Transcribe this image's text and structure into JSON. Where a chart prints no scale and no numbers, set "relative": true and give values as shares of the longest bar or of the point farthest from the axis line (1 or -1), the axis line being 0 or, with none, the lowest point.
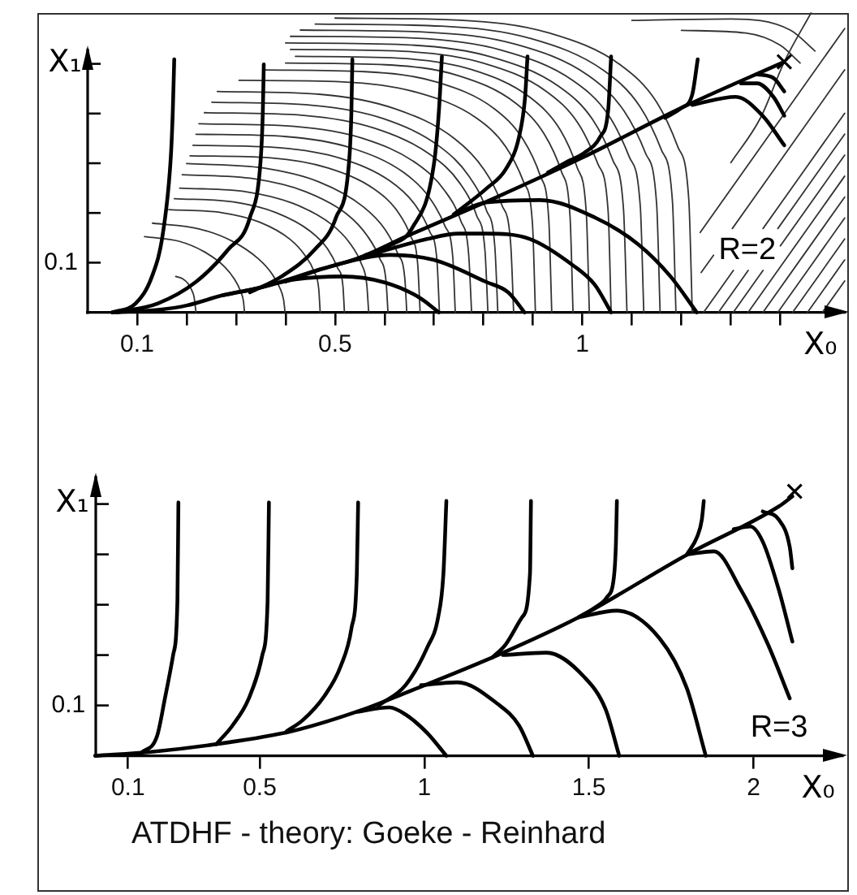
{
  "chart_data": [
    {
      "type": "line",
      "relative": true,
      "xlabel": "X₀",
      "ylabel": "X₁",
      "annotations": [
        "R=2",
        "0.1"
      ],
      "marker": "none",
      "xlim": [
        0,
        1.53
      ],
      "xticks": [
        0.1,
        {
          "value": 0.2,
          "label": null
        },
        {
          "value": 0.3,
          "label": null
        },
        {
          "value": 0.4,
          "label": null
        },
        0.5,
        {
          "value": 0.6,
          "label": null
        },
        {
          "value": 0.7,
          "label": null
        },
        {
          "value": 0.8,
          "label": null
        },
        {
          "value": 0.9,
          "label": null
        },
        1,
        {
          "value": 1.1,
          "label": null
        },
        {
          "value": 1.2,
          "label": null
        },
        {
          "value": 1.3,
          "label": null
        },
        {
          "value": 1.4,
          "label": null
        }
      ],
      "series": [
        {
          "color": "#333333",
          "x": [
            0.178,
            0.192,
            0.203,
            0.211,
            0.215,
            0.219
          ],
          "values": [
            0.12,
            0.112,
            0.096,
            0.072,
            0.052,
            0
          ]
        },
        {
          "color": "#333333",
          "x": [
            0.115,
            0.186,
            0.236,
            0.277,
            0.297,
            0.309,
            0.315,
            0.317
          ],
          "values": [
            0.253,
            0.237,
            0.202,
            0.152,
            0.11,
            0.071,
            0.036,
            0
          ]
        },
        {
          "color": "#333333",
          "x": [
            0.131,
            0.225,
            0.292,
            0.345,
            0.372,
            0.388,
            0.396,
            0.399
          ],
          "values": [
            0.298,
            0.279,
            0.238,
            0.179,
            0.13,
            0.083,
            0.042,
            0
          ]
        },
        {
          "color": "#333333",
          "x": [
            0.164,
            0.271,
            0.348,
            0.409,
            0.439,
            0.458,
            0.467,
            0.47
          ],
          "values": [
            0.343,
            0.333,
            0.301,
            0.244,
            0.191,
            0.135,
            0.079,
            0
          ]
        },
        {
          "color": "#333333",
          "x": [
            0.175,
            0.295,
            0.381,
            0.45,
            0.485,
            0.505,
            0.516,
            0.519
          ],
          "values": [
            0.38,
            0.369,
            0.333,
            0.271,
            0.212,
            0.149,
            0.087,
            0
          ]
        },
        {
          "color": "#333333",
          "x": [
            0.186,
            0.32,
            0.415,
            0.492,
            0.53,
            0.553,
            0.564,
            0.568
          ],
          "values": [
            0.415,
            0.403,
            0.364,
            0.295,
            0.231,
            0.163,
            0.095,
            0
          ]
        },
        {
          "color": "#333333",
          "x": [
            0.191,
            0.337,
            0.441,
            0.524,
            0.565,
            0.59,
            0.603,
            0.607
          ],
          "values": [
            0.46,
            0.446,
            0.403,
            0.328,
            0.256,
            0.181,
            0.105,
            0
          ]
        },
        {
          "color": "#333333",
          "x": [
            0.2,
            0.356,
            0.467,
            0.556,
            0.601,
            0.627,
            0.641,
            0.645
          ],
          "values": [
            0.497,
            0.482,
            0.436,
            0.354,
            0.277,
            0.195,
            0.114,
            0
          ]
        },
        {
          "color": "#333333",
          "x": [
            0.207,
            0.37,
            0.486,
            0.579,
            0.626,
            0.653,
            0.667,
            0.672
          ],
          "values": [
            0.523,
            0.516,
            0.482,
            0.412,
            0.338,
            0.254,
            0.162,
            0
          ]
        },
        {
          "color": "#333333",
          "x": [
            0.213,
            0.387,
            0.512,
            0.611,
            0.661,
            0.691,
            0.706,
            0.711
          ],
          "values": [
            0.558,
            0.55,
            0.514,
            0.439,
            0.361,
            0.271,
            0.173,
            0
          ]
        },
        {
          "color": "#333333",
          "x": [
            0.219,
            0.402,
            0.533,
            0.638,
            0.69,
            0.722,
            0.738,
            0.743
          ],
          "values": [
            0.595,
            0.587,
            0.549,
            0.468,
            0.385,
            0.289,
            0.184,
            0
          ]
        },
        {
          "color": "#333333",
          "x": [
            0.225,
            0.418,
            0.556,
            0.666,
            0.721,
            0.754,
            0.77,
            0.776
          ],
          "values": [
            0.63,
            0.621,
            0.581,
            0.496,
            0.408,
            0.306,
            0.195,
            0
          ]
        },
        {
          "color": "#333333",
          "x": [
            0.236,
            0.437,
            0.58,
            0.694,
            0.752,
            0.786,
            0.803,
            0.809
          ],
          "values": [
            0.667,
            0.658,
            0.615,
            0.525,
            0.432,
            0.324,
            0.207,
            0
          ]
        },
        {
          "color": "#333333",
          "x": [
            0.251,
            0.453,
            0.598,
            0.713,
            0.771,
            0.806,
            0.823,
            0.829
          ],
          "values": [
            0.702,
            0.692,
            0.647,
            0.552,
            0.454,
            0.341,
            0.218,
            0
          ]
        },
        {
          "color": "#333333",
          "x": [
            0.262,
            0.472,
            0.621,
            0.741,
            0.801,
            0.837,
            0.855,
            0.861
          ],
          "values": [
            0.738,
            0.728,
            0.68,
            0.581,
            0.477,
            0.359,
            0.229,
            0
          ]
        },
        {
          "color": "#333333",
          "x": [
            0.306,
            0.516,
            0.665,
            0.785,
            0.845,
            0.881,
            0.899,
            0.905
          ],
          "values": [
            0.775,
            0.77,
            0.735,
            0.65,
            0.553,
            0.436,
            0.297,
            0
          ]
        },
        {
          "color": "#333333",
          "x": [
            0.357,
            0.56,
            0.706,
            0.822,
            0.88,
            0.915,
            0.932,
            0.938
          ],
          "values": [
            0.81,
            0.804,
            0.769,
            0.68,
            0.578,
            0.455,
            0.31,
            0
          ]
        },
        {
          "color": "#333333",
          "x": [
            0.4,
            0.603,
            0.749,
            0.865,
            0.923,
            0.958,
            0.975,
            0.981
          ],
          "values": [
            0.833,
            0.827,
            0.791,
            0.699,
            0.595,
            0.468,
            0.319,
            0
          ]
        },
        {
          "color": "#333333",
          "x": [
            0.42,
            0.628,
            0.776,
            0.895,
            0.955,
            0.99,
            1.008,
            1.014
          ],
          "values": [
            0.855,
            0.849,
            0.811,
            0.717,
            0.61,
            0.481,
            0.327,
            0
          ]
        },
        {
          "color": "#333333",
          "x": [
            0.41,
            0.637,
            0.799,
            0.928,
            0.993,
            1.032,
            1.052,
            1.058
          ],
          "values": [
            0.878,
            0.872,
            0.833,
            0.737,
            0.627,
            0.493,
            0.336,
            0
          ]
        },
        {
          "color": "#333333",
          "x": [
            0.4,
            0.642,
            0.814,
            0.952,
            1.021,
            1.062,
            1.083,
            1.09
          ],
          "values": [
            0.9,
            0.894,
            0.854,
            0.755,
            0.643,
            0.506,
            0.345,
            0
          ]
        },
        {
          "color": "#333333",
          "x": [
            0.41,
            0.66,
            0.838,
            0.981,
            1.053,
            1.095,
            1.117,
            1.124
          ],
          "values": [
            0.922,
            0.916,
            0.875,
            0.774,
            0.658,
            0.518,
            0.353,
            0
          ]
        },
        {
          "color": "#333333",
          "x": [
            0.43,
            0.684,
            0.866,
            1.012,
            1.084,
            1.128,
            1.15,
            1.157
          ],
          "values": [
            0.943,
            0.936,
            0.895,
            0.791,
            0.673,
            0.53,
            0.361,
            0
          ]
        },
        {
          "color": "#333333",
          "x": [
            0.46,
            0.715,
            0.897,
            1.043,
            1.116,
            1.16,
            1.182,
            1.189
          ],
          "values": [
            0.963,
            0.956,
            0.914,
            0.808,
            0.688,
            0.541,
            0.369,
            0
          ]
        },
        {
          "color": "#333333",
          "x": [
            0.5,
            0.753,
            0.933,
            1.078,
            1.15,
            1.193,
            1.215,
            1.222
          ],
          "values": [
            0.983,
            0.976,
            0.933,
            0.825,
            0.702,
            0.552,
            0.376,
            0
          ]
        },
        {
          "color": "#333333",
          "x": [
            1.245,
            1.305,
            null,
            1.365,
            1.53
          ],
          "values": [
            0,
            0.14,
            null,
            0.28,
            0.665
          ]
        },
        {
          "color": "#333333",
          "x": [
            1.275,
            1.335,
            null,
            1.395,
            1.53
          ],
          "values": [
            0,
            0.14,
            null,
            0.28,
            0.595
          ]
        },
        {
          "color": "#333333",
          "x": [
            1.305,
            1.365,
            null,
            1.4,
            1.53
          ],
          "values": [
            0,
            0.14,
            null,
            0.222,
            0.525
          ]
        },
        {
          "color": "#333333",
          "x": [
            1.335,
            1.53
          ],
          "values": [
            0,
            0.455
          ]
        },
        {
          "color": "#333333",
          "x": [
            1.365,
            1.53
          ],
          "values": [
            0,
            0.385
          ]
        },
        {
          "color": "#333333",
          "x": [
            1.395,
            1.53
          ],
          "values": [
            0,
            0.315
          ]
        },
        {
          "color": "#333333",
          "x": [
            1.425,
            1.53
          ],
          "values": [
            0,
            0.245
          ]
        },
        {
          "color": "#333333",
          "x": [
            1.455,
            1.53
          ],
          "values": [
            0,
            0.175
          ]
        },
        {
          "color": "#333333",
          "x": [
            1.485,
            1.53
          ],
          "values": [
            0,
            0.105
          ]
        },
        {
          "color": "#333333",
          "x": [
            1.24,
            1.265,
            null,
            1.303,
            1.53
          ],
          "values": [
            0.133,
            0.191,
            null,
            0.28,
            0.81
          ]
        },
        {
          "color": "#333333",
          "x": [
            1.238,
            1.53
          ],
          "values": [
            0.267,
            0.948
          ]
        },
        {
          "color": "#333333",
          "x": [
            1.1,
            1.3,
            1.42,
            1.47
          ],
          "values": [
            0.975,
            0.98,
            0.943,
            0.873
          ]
        },
        {
          "color": "#333333",
          "x": [
            1.2,
            1.33,
            1.4,
            1.44
          ],
          "values": [
            0.942,
            0.933,
            0.892,
            0.833
          ]
        },
        {
          "color": "#333333",
          "x": [
            1.3,
            1.36,
            1.408,
            1.462
          ],
          "values": [
            0.5,
            0.65,
            0.837,
            1
          ]
        },
        {
          "color": "#000000",
          "x": [
            0.05,
            0.15,
            0.2,
            0.273,
            0.35,
            0.459,
            0.55,
            0.643,
            0.82,
            1.0,
            1.2,
            1.408
          ],
          "values": [
            0,
            0.01,
            0.023,
            0.057,
            0.083,
            0.138,
            0.183,
            0.253,
            0.38,
            0.517,
            0.683,
            0.837
          ]
        },
        {
          "color": "#000000",
          "x": [
            0.05,
            0.097,
            0.13,
            0.152,
            0.168,
            0.172,
            0.175
          ],
          "values": [
            0,
            0.03,
            0.12,
            0.263,
            0.517,
            0.667,
            0.845
          ]
        },
        {
          "color": "#000000",
          "x": [
            0.06,
            0.142,
            0.219,
            0.284,
            0.328,
            0.35,
            0.354,
            0.356
          ],
          "values": [
            0,
            0.03,
            0.102,
            0.21,
            0.317,
            0.517,
            0.667,
            0.828
          ]
        },
        {
          "color": "#000000",
          "x": [
            0.328,
            0.392,
            0.459,
            0.502,
            0.529,
            0.533,
            0.535
          ],
          "values": [
            0.067,
            0.12,
            0.21,
            0.317,
            0.517,
            0.667,
            0.845
          ]
        },
        {
          "color": "#000000",
          "x": [
            0.56,
            0.612,
            0.656,
            0.7,
            0.71,
            0.716
          ],
          "values": [
            0.19,
            0.225,
            0.282,
            0.497,
            0.675,
            0.855
          ]
        },
        {
          "color": "#000000",
          "x": [
            0.74,
            0.807,
            0.845,
            0.872,
            0.884,
            0.889
          ],
          "values": [
            0.327,
            0.415,
            0.478,
            0.587,
            0.717,
            0.855
          ]
        },
        {
          "color": "#000000",
          "x": [
            0.93,
            0.975,
            1.003,
            1.036,
            1.052,
            1.058
          ],
          "values": [
            0.467,
            0.508,
            0.532,
            0.587,
            0.675,
            0.855
          ]
        },
        {
          "color": "#000000",
          "x": [
            1.167,
            1.2,
            1.222,
            1.233
          ],
          "values": [
            0.65,
            0.683,
            0.728,
            0.845
          ]
        },
        {
          "color": "#000000",
          "x": [
            1.222,
            1.31,
            1.364,
            1.408
          ],
          "values": [
            0.693,
            0.72,
            0.657,
            0.558
          ]
        },
        {
          "color": "#000000",
          "x": [
            1.32,
            1.353,
            1.386,
            1.408
          ],
          "values": [
            0.765,
            0.765,
            0.72,
            0.657
          ]
        },
        {
          "color": "#000000",
          "x": [
            1.353,
            1.386,
            1.408
          ],
          "values": [
            0.795,
            0.783,
            0.738
          ]
        },
        {
          "color": "#000000",
          "x": [
            0.273,
            0.328,
            0.42,
            0.514,
            0.6,
            0.67,
            0.71
          ],
          "values": [
            0.057,
            0.075,
            0.11,
            0.12,
            0.1,
            0.05,
            0
          ]
        },
        {
          "color": "#000000",
          "x": [
            0.4,
            0.5,
            0.612,
            0.7,
            0.805,
            0.85,
            0.883
          ],
          "values": [
            0.103,
            0.158,
            0.192,
            0.175,
            0.102,
            0.067,
            0
          ]
        },
        {
          "color": "#000000",
          "x": [
            0.55,
            0.686,
            0.75,
            0.805,
            0.894,
            0.981,
            1.025,
            1.058
          ],
          "values": [
            0.183,
            0.245,
            0.263,
            0.263,
            0.245,
            0.157,
            0.092,
            0
          ]
        },
        {
          "color": "#000000",
          "x": [
            0.74,
            0.805,
            0.914,
            1.025,
            1.113,
            1.178,
            1.231
          ],
          "values": [
            0.327,
            0.367,
            0.375,
            0.317,
            0.227,
            0.12,
            0
          ]
        },
        {
          "type": "scatter",
          "marker": "cross",
          "color": "#000000",
          "x": [
            1.408
          ],
          "values": [
            0.837
          ]
        }
      ]
    },
    {
      "type": "line",
      "relative": true,
      "xlabel": "X₀",
      "ylabel": "X₁",
      "annotations": [
        "R=3",
        "0.1",
        "ATDHF - theory: Goeke - Reinhard"
      ],
      "marker": "none",
      "xlim": [
        0,
        2.27
      ],
      "xticks": [
        0.1,
        0.5,
        1,
        1.5,
        2
      ],
      "series": [
        {
          "color": "#000000",
          "x": [
            0,
            0.171,
            0.368,
            0.598,
            0.828,
            0.943,
            1.223,
            1.469,
            1.797,
            2.077,
            2.118
          ],
          "values": [
            0,
            0.015,
            0.044,
            0.093,
            0.181,
            0.238,
            0.381,
            0.524,
            0.76,
            0.943,
            0.981
          ]
        },
        {
          "color": "#000000",
          "x": [
            0.14,
            0.188,
            0.212,
            0.237,
            0.25,
            0.253
          ],
          "values": [
            0.011,
            0.074,
            0.217,
            0.381,
            0.585,
            0.958
          ]
        },
        {
          "color": "#000000",
          "x": [
            0.368,
            0.417,
            0.467,
            0.508,
            0.524,
            0.528
          ],
          "values": [
            0.044,
            0.114,
            0.217,
            0.381,
            0.585,
            0.958
          ]
        },
        {
          "color": "#000000",
          "x": [
            0.582,
            0.631,
            0.697,
            0.746,
            0.779,
            0.795,
            0.799
          ],
          "values": [
            0.093,
            0.135,
            0.227,
            0.339,
            0.484,
            0.688,
            0.958
          ]
        },
        {
          "color": "#000000",
          "x": [
            0.861,
            0.943,
            1.009,
            1.042,
            1.058,
            1.067
          ],
          "values": [
            0.19,
            0.267,
            0.41,
            0.524,
            0.688,
            0.964
          ]
        },
        {
          "color": "#000000",
          "x": [
            1.206,
            1.247,
            1.297,
            1.321,
            1.324
          ],
          "values": [
            0.371,
            0.421,
            0.524,
            0.688,
            0.964
          ]
        },
        {
          "color": "#000000",
          "x": [
            1.469,
            1.52,
            1.555,
            1.576,
            1.582,
            1.585
          ],
          "values": [
            0.524,
            0.562,
            0.6,
            0.676,
            0.8,
            0.964
          ]
        },
        {
          "color": "#000000",
          "x": [
            1.797,
            1.83,
            1.843,
            1.849
          ],
          "values": [
            0.76,
            0.832,
            0.893,
            0.964
          ]
        },
        {
          "color": "#000000",
          "x": [
            0.795,
            0.894,
            0.943,
            1.009,
            1.067
          ],
          "values": [
            0.166,
            0.183,
            0.156,
            0.086,
            0
          ]
        },
        {
          "color": "#000000",
          "x": [
            0.99,
            1.1,
            1.223,
            1.288,
            1.33
          ],
          "values": [
            0.267,
            0.278,
            0.196,
            0.114,
            0
          ]
        },
        {
          "color": "#000000",
          "x": [
            1.239,
            1.371,
            1.485,
            1.551,
            1.592
          ],
          "values": [
            0.381,
            0.39,
            0.299,
            0.175,
            0
          ]
        },
        {
          "color": "#000000",
          "x": [
            1.469,
            1.584,
            1.716,
            1.797,
            1.855
          ],
          "values": [
            0.524,
            0.549,
            0.442,
            0.257,
            0
          ]
        },
        {
          "color": "#000000",
          "x": [
            1.8,
            1.88,
            1.962,
            2.044,
            2.11
          ],
          "values": [
            0.762,
            0.773,
            0.627,
            0.421,
            0.217
          ]
        },
        {
          "color": "#000000",
          "x": [
            1.94,
            1.99,
            2.028,
            2.077,
            2.118
          ],
          "values": [
            0.857,
            0.867,
            0.81,
            0.627,
            0.432
          ]
        },
        {
          "color": "#000000",
          "x": [
            2.028,
            2.077,
            2.11,
            2.118
          ],
          "values": [
            0.924,
            0.893,
            0.79,
            0.709
          ]
        },
        {
          "type": "scatter",
          "marker": "cross",
          "color": "#000000",
          "x": [
            2.125
          ],
          "values": [
            1
          ]
        }
      ]
    }
  ]
}
